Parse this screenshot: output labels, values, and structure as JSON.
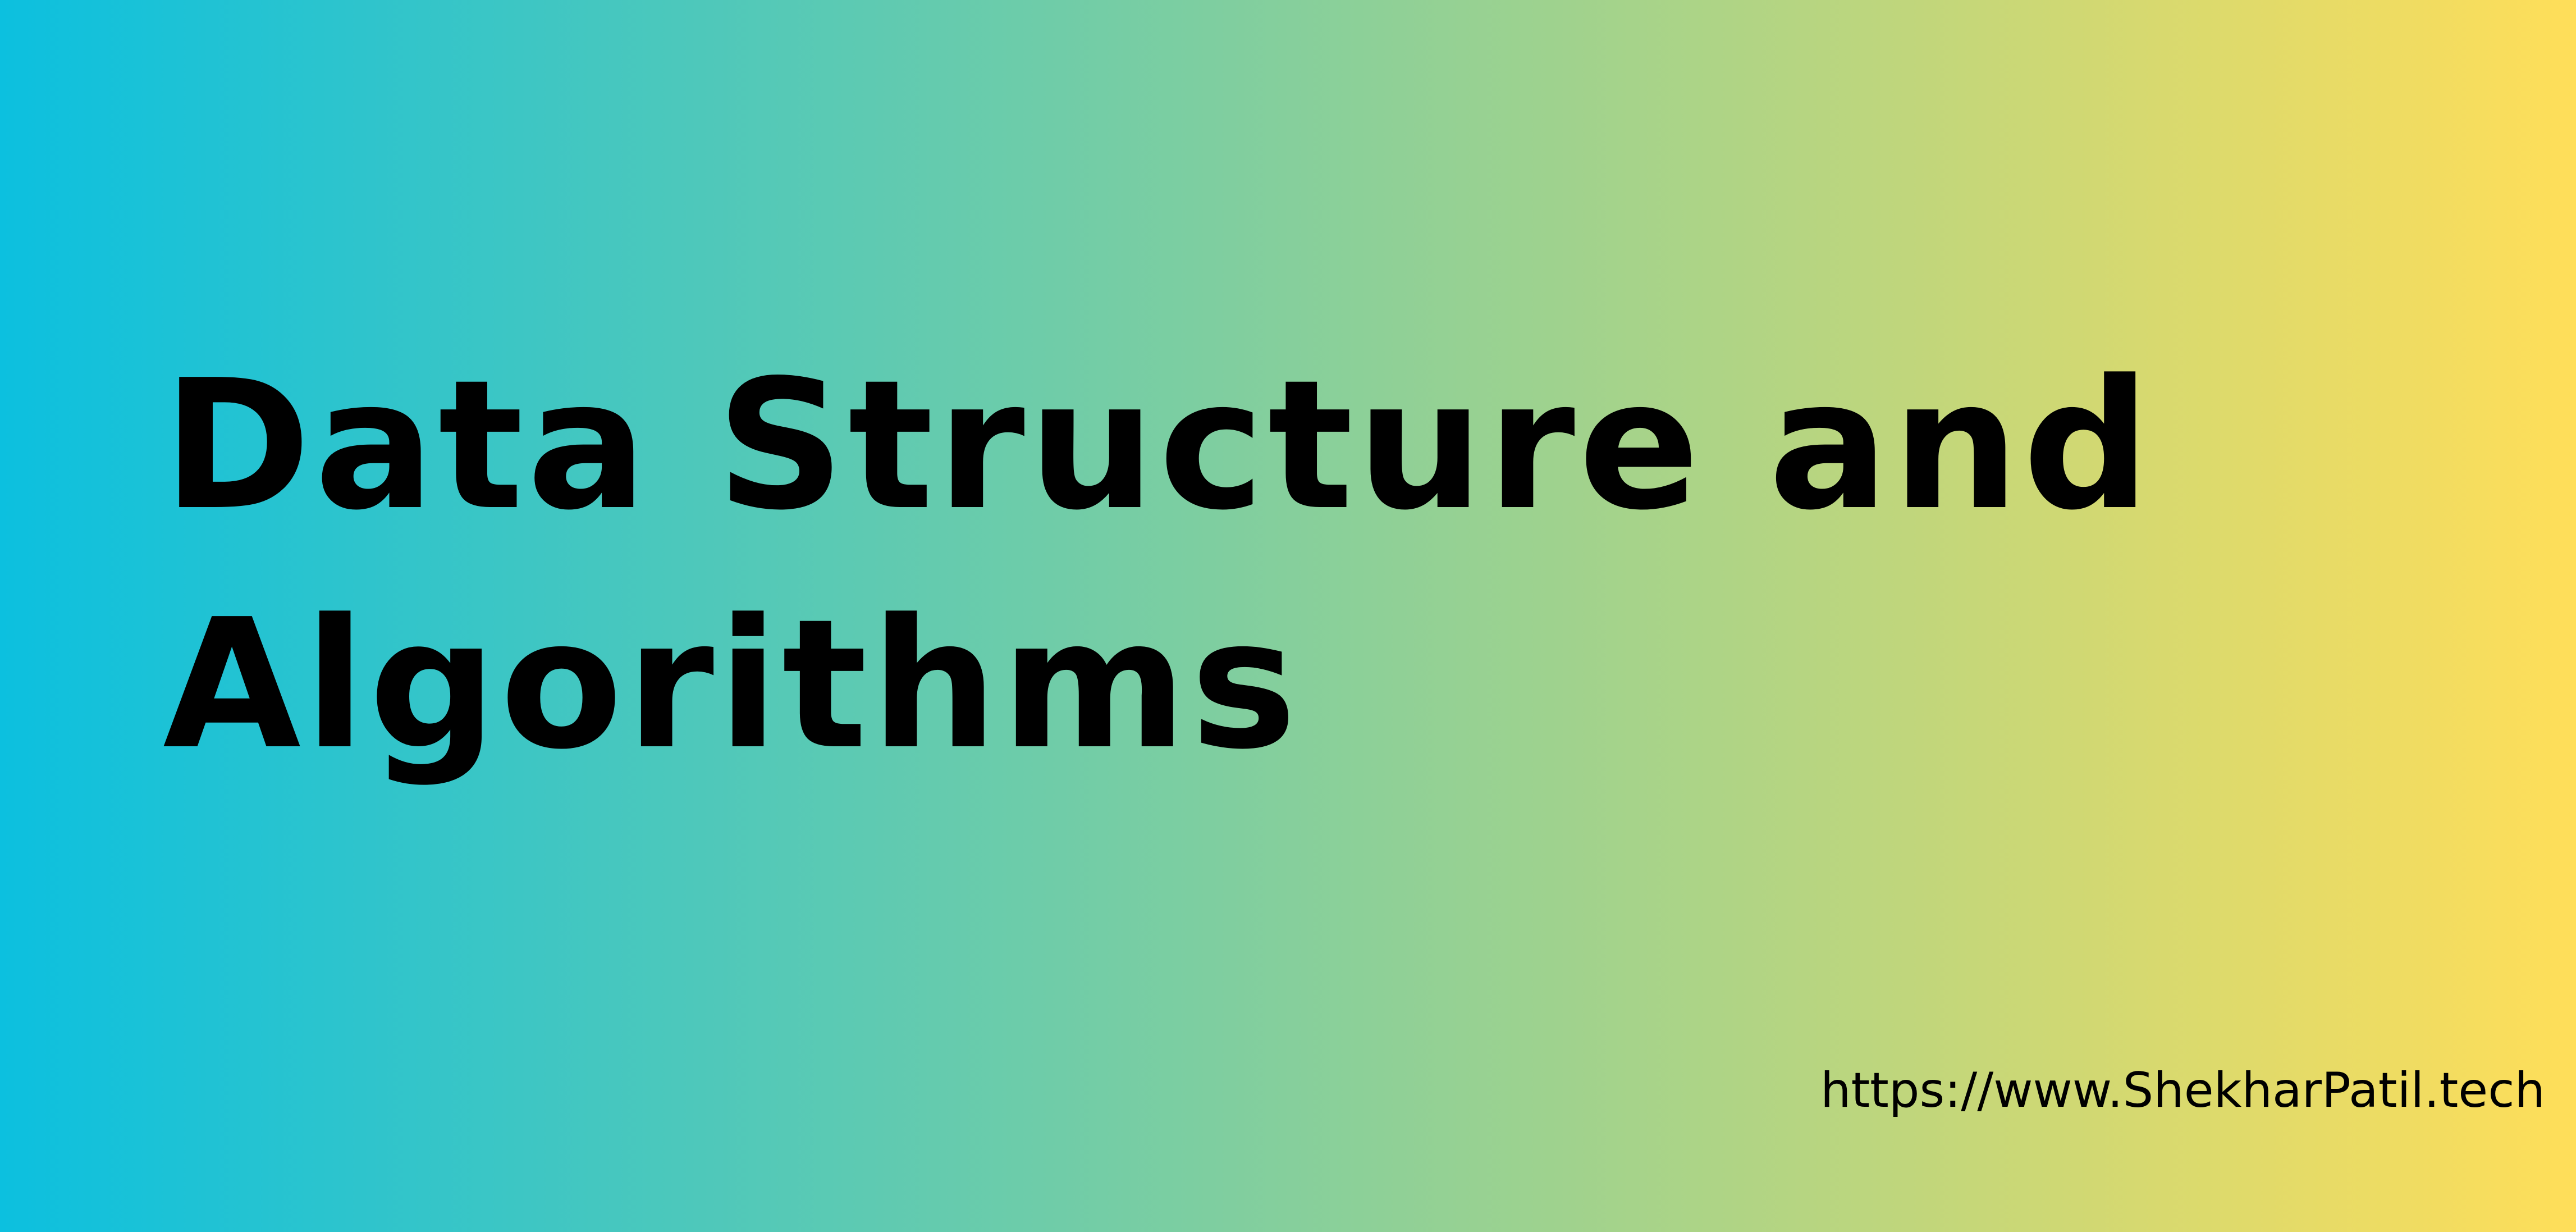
{
  "banner": {
    "title_line_1": "Data Structure and",
    "title_line_2": "Algorithms",
    "url": "https://www.ShekharPatil.tech"
  },
  "colors": {
    "gradient_start": "#0cc0df",
    "gradient_end": "#ffde59",
    "text": "#000000"
  }
}
